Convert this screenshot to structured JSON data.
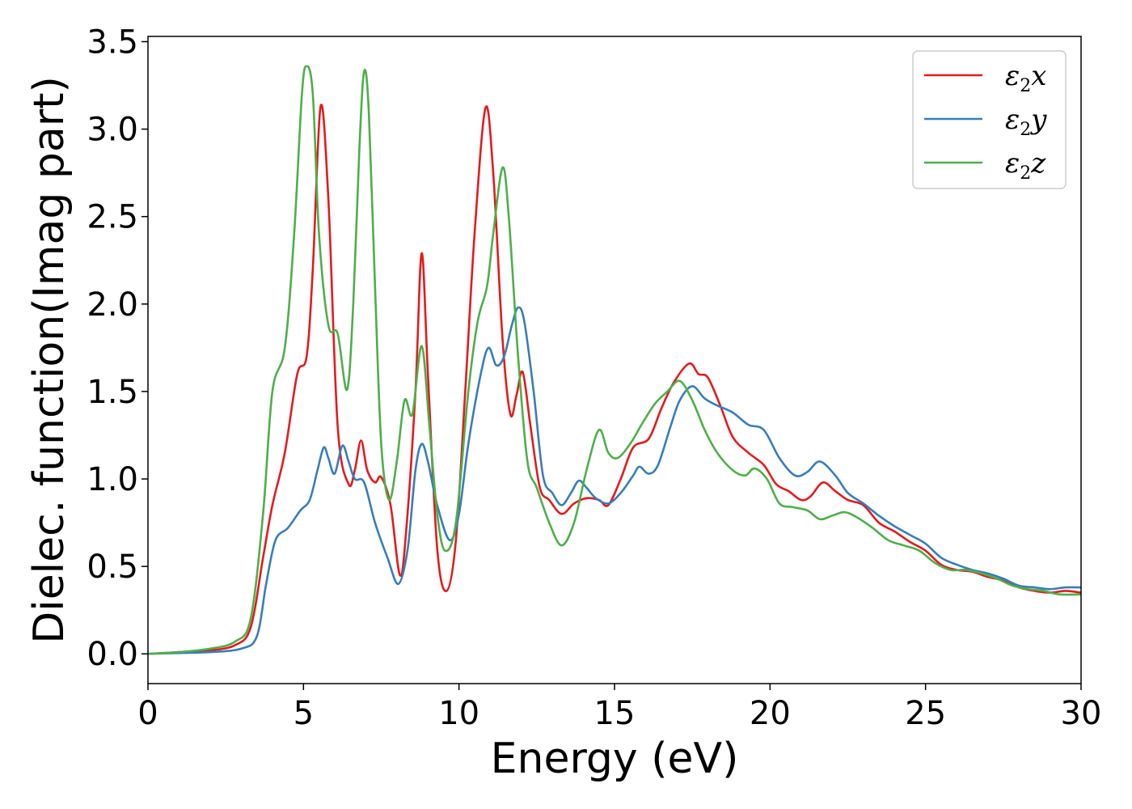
{
  "chart_data": {
    "type": "line",
    "xlabel": "Energy (eV)",
    "ylabel": "Dielec. function(Imag part)",
    "xlim": [
      0,
      30
    ],
    "ylim": [
      -0.17,
      3.53
    ],
    "xticks": [
      "0",
      "5",
      "10",
      "15",
      "20",
      "25",
      "30"
    ],
    "yticks": [
      "0.0",
      "0.5",
      "1.0",
      "1.5",
      "2.0",
      "2.5",
      "3.0",
      "3.5"
    ],
    "grid": false,
    "legend_position": "top-right",
    "series": [
      {
        "name": "ε2x",
        "legend_base": "ε",
        "legend_sub": "2",
        "legend_tail": "x",
        "color": "#e41a1c",
        "points": [
          [
            0,
            0
          ],
          [
            1,
            0.01
          ],
          [
            2,
            0.02
          ],
          [
            2.8,
            0.05
          ],
          [
            3.3,
            0.15
          ],
          [
            3.7,
            0.55
          ],
          [
            4,
            0.85
          ],
          [
            4.4,
            1.15
          ],
          [
            4.8,
            1.6
          ],
          [
            5.1,
            1.7
          ],
          [
            5.3,
            2.2
          ],
          [
            5.55,
            3.13
          ],
          [
            5.8,
            2.6
          ],
          [
            6.1,
            1.3
          ],
          [
            6.45,
            0.97
          ],
          [
            6.65,
            1.05
          ],
          [
            6.85,
            1.22
          ],
          [
            7.05,
            1.05
          ],
          [
            7.3,
            0.98
          ],
          [
            7.5,
            1.01
          ],
          [
            7.8,
            0.85
          ],
          [
            8.1,
            0.45
          ],
          [
            8.3,
            0.7
          ],
          [
            8.6,
            1.5
          ],
          [
            8.8,
            2.29
          ],
          [
            9.0,
            1.6
          ],
          [
            9.3,
            0.6
          ],
          [
            9.6,
            0.36
          ],
          [
            9.9,
            0.65
          ],
          [
            10.2,
            1.5
          ],
          [
            10.5,
            2.4
          ],
          [
            10.85,
            3.12
          ],
          [
            11.1,
            2.75
          ],
          [
            11.4,
            1.8
          ],
          [
            11.65,
            1.37
          ],
          [
            11.85,
            1.48
          ],
          [
            12.05,
            1.61
          ],
          [
            12.3,
            1.3
          ],
          [
            12.6,
            0.95
          ],
          [
            12.9,
            0.88
          ],
          [
            13.3,
            0.8
          ],
          [
            13.7,
            0.86
          ],
          [
            14.1,
            0.89
          ],
          [
            14.5,
            0.88
          ],
          [
            14.8,
            0.85
          ],
          [
            15.2,
            1.0
          ],
          [
            15.6,
            1.18
          ],
          [
            16.1,
            1.23
          ],
          [
            16.5,
            1.4
          ],
          [
            16.9,
            1.55
          ],
          [
            17.4,
            1.66
          ],
          [
            17.7,
            1.6
          ],
          [
            18.0,
            1.58
          ],
          [
            18.4,
            1.42
          ],
          [
            18.8,
            1.24
          ],
          [
            19.3,
            1.15
          ],
          [
            19.8,
            1.08
          ],
          [
            20.2,
            0.97
          ],
          [
            20.6,
            0.93
          ],
          [
            21.0,
            0.88
          ],
          [
            21.3,
            0.9
          ],
          [
            21.7,
            0.98
          ],
          [
            22.1,
            0.93
          ],
          [
            22.5,
            0.88
          ],
          [
            23.0,
            0.85
          ],
          [
            23.5,
            0.75
          ],
          [
            24.0,
            0.7
          ],
          [
            24.5,
            0.64
          ],
          [
            25.0,
            0.59
          ],
          [
            25.5,
            0.51
          ],
          [
            26.0,
            0.48
          ],
          [
            26.5,
            0.47
          ],
          [
            27.0,
            0.44
          ],
          [
            27.5,
            0.42
          ],
          [
            28.0,
            0.38
          ],
          [
            28.5,
            0.36
          ],
          [
            29.0,
            0.35
          ],
          [
            29.5,
            0.36
          ],
          [
            30.0,
            0.35
          ]
        ]
      },
      {
        "name": "ε2y",
        "legend_base": "ε",
        "legend_sub": "2",
        "legend_tail": "y",
        "color": "#377eb8",
        "points": [
          [
            0,
            0
          ],
          [
            1,
            0.005
          ],
          [
            2,
            0.01
          ],
          [
            3,
            0.03
          ],
          [
            3.5,
            0.1
          ],
          [
            3.8,
            0.4
          ],
          [
            4.1,
            0.65
          ],
          [
            4.5,
            0.72
          ],
          [
            4.9,
            0.82
          ],
          [
            5.2,
            0.88
          ],
          [
            5.45,
            1.05
          ],
          [
            5.65,
            1.18
          ],
          [
            5.8,
            1.12
          ],
          [
            6.0,
            1.03
          ],
          [
            6.25,
            1.19
          ],
          [
            6.45,
            1.1
          ],
          [
            6.65,
            1.0
          ],
          [
            6.95,
            0.98
          ],
          [
            7.3,
            0.75
          ],
          [
            7.7,
            0.55
          ],
          [
            8.05,
            0.4
          ],
          [
            8.35,
            0.6
          ],
          [
            8.6,
            1.05
          ],
          [
            8.8,
            1.2
          ],
          [
            9.0,
            1.1
          ],
          [
            9.3,
            0.85
          ],
          [
            9.7,
            0.65
          ],
          [
            10.0,
            0.8
          ],
          [
            10.3,
            1.2
          ],
          [
            10.7,
            1.6
          ],
          [
            10.95,
            1.75
          ],
          [
            11.2,
            1.65
          ],
          [
            11.45,
            1.7
          ],
          [
            11.7,
            1.88
          ],
          [
            11.9,
            1.98
          ],
          [
            12.1,
            1.9
          ],
          [
            12.4,
            1.5
          ],
          [
            12.7,
            1.02
          ],
          [
            13.0,
            0.92
          ],
          [
            13.3,
            0.85
          ],
          [
            13.6,
            0.92
          ],
          [
            13.85,
            0.99
          ],
          [
            14.1,
            0.95
          ],
          [
            14.4,
            0.89
          ],
          [
            14.8,
            0.86
          ],
          [
            15.2,
            0.92
          ],
          [
            15.6,
            1.02
          ],
          [
            15.8,
            1.07
          ],
          [
            16.1,
            1.03
          ],
          [
            16.4,
            1.08
          ],
          [
            16.8,
            1.3
          ],
          [
            17.1,
            1.45
          ],
          [
            17.5,
            1.53
          ],
          [
            17.9,
            1.46
          ],
          [
            18.3,
            1.42
          ],
          [
            18.8,
            1.38
          ],
          [
            19.3,
            1.31
          ],
          [
            19.8,
            1.28
          ],
          [
            20.3,
            1.12
          ],
          [
            20.8,
            1.02
          ],
          [
            21.2,
            1.04
          ],
          [
            21.6,
            1.1
          ],
          [
            22.1,
            1.02
          ],
          [
            22.5,
            0.92
          ],
          [
            23.0,
            0.86
          ],
          [
            23.5,
            0.79
          ],
          [
            24.0,
            0.73
          ],
          [
            24.5,
            0.68
          ],
          [
            25.0,
            0.63
          ],
          [
            25.5,
            0.55
          ],
          [
            26.0,
            0.51
          ],
          [
            26.5,
            0.48
          ],
          [
            27.0,
            0.46
          ],
          [
            27.5,
            0.43
          ],
          [
            28.0,
            0.39
          ],
          [
            28.5,
            0.38
          ],
          [
            29.0,
            0.37
          ],
          [
            29.5,
            0.38
          ],
          [
            30.0,
            0.38
          ]
        ]
      },
      {
        "name": "ε2z",
        "legend_base": "ε",
        "legend_sub": "2",
        "legend_tail": "z",
        "color": "#4daf4a",
        "points": [
          [
            0,
            0
          ],
          [
            1,
            0.01
          ],
          [
            2,
            0.03
          ],
          [
            2.8,
            0.07
          ],
          [
            3.3,
            0.2
          ],
          [
            3.7,
            0.8
          ],
          [
            4.0,
            1.5
          ],
          [
            4.4,
            1.75
          ],
          [
            4.7,
            2.4
          ],
          [
            4.95,
            3.2
          ],
          [
            5.1,
            3.36
          ],
          [
            5.3,
            3.2
          ],
          [
            5.5,
            2.4
          ],
          [
            5.8,
            1.88
          ],
          [
            6.1,
            1.83
          ],
          [
            6.4,
            1.51
          ],
          [
            6.6,
            2.0
          ],
          [
            6.8,
            2.9
          ],
          [
            6.95,
            3.33
          ],
          [
            7.1,
            3.1
          ],
          [
            7.3,
            2.1
          ],
          [
            7.5,
            1.2
          ],
          [
            7.75,
            0.88
          ],
          [
            8.0,
            1.1
          ],
          [
            8.25,
            1.45
          ],
          [
            8.5,
            1.37
          ],
          [
            8.8,
            1.76
          ],
          [
            9.05,
            1.3
          ],
          [
            9.3,
            0.8
          ],
          [
            9.55,
            0.59
          ],
          [
            9.9,
            0.75
          ],
          [
            10.3,
            1.5
          ],
          [
            10.6,
            1.9
          ],
          [
            10.9,
            2.1
          ],
          [
            11.1,
            2.4
          ],
          [
            11.4,
            2.78
          ],
          [
            11.6,
            2.5
          ],
          [
            11.9,
            1.7
          ],
          [
            12.2,
            1.1
          ],
          [
            12.5,
            0.95
          ],
          [
            12.9,
            0.75
          ],
          [
            13.3,
            0.62
          ],
          [
            13.7,
            0.75
          ],
          [
            14.1,
            1.05
          ],
          [
            14.5,
            1.28
          ],
          [
            14.8,
            1.15
          ],
          [
            15.1,
            1.12
          ],
          [
            15.5,
            1.2
          ],
          [
            15.9,
            1.32
          ],
          [
            16.3,
            1.43
          ],
          [
            16.7,
            1.5
          ],
          [
            17.1,
            1.56
          ],
          [
            17.5,
            1.45
          ],
          [
            17.9,
            1.28
          ],
          [
            18.3,
            1.15
          ],
          [
            18.8,
            1.05
          ],
          [
            19.2,
            1.02
          ],
          [
            19.5,
            1.06
          ],
          [
            19.9,
            1.0
          ],
          [
            20.3,
            0.86
          ],
          [
            20.7,
            0.84
          ],
          [
            21.2,
            0.82
          ],
          [
            21.6,
            0.77
          ],
          [
            22.0,
            0.79
          ],
          [
            22.4,
            0.81
          ],
          [
            22.8,
            0.78
          ],
          [
            23.3,
            0.72
          ],
          [
            23.8,
            0.65
          ],
          [
            24.3,
            0.62
          ],
          [
            24.8,
            0.59
          ],
          [
            25.3,
            0.52
          ],
          [
            25.8,
            0.48
          ],
          [
            26.3,
            0.48
          ],
          [
            26.8,
            0.46
          ],
          [
            27.3,
            0.43
          ],
          [
            27.8,
            0.39
          ],
          [
            28.3,
            0.37
          ],
          [
            28.8,
            0.36
          ],
          [
            29.3,
            0.34
          ],
          [
            30.0,
            0.34
          ]
        ]
      }
    ]
  }
}
